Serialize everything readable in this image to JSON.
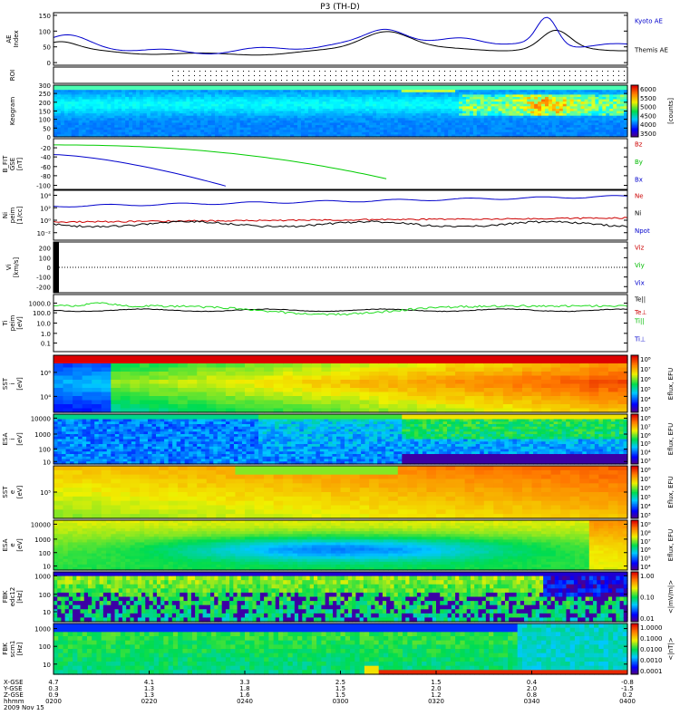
{
  "title": "P3 (TH-D)",
  "date_label": "2009 Nov 15",
  "chart_data": {
    "type": "multi-panel",
    "xaxis": {
      "row_labels": [
        "X-GSE",
        "Y-GSE",
        "Z-GSE",
        "hhmm"
      ],
      "times": [
        "0200",
        "0220",
        "0240",
        "0300",
        "0320",
        "0340",
        "0400"
      ],
      "x_gse": [
        "4.7",
        "4.1",
        "3.3",
        "2.5",
        "1.5",
        "0.4",
        "-0.8"
      ],
      "y_gse": [
        "0.3",
        "1.3",
        "1.8",
        "1.5",
        "2.0",
        "2.0",
        "-1.5"
      ],
      "z_gse": [
        "0.9",
        "1.3",
        "1.6",
        "1.5",
        "1.2",
        "0.8",
        "0.2"
      ]
    },
    "panels": [
      {
        "id": "ae",
        "ylabel": "AE Index",
        "ticks": [
          "150",
          "100",
          "50",
          "0"
        ],
        "series": [
          {
            "name": "Kyoto AE",
            "color": "#0000cc"
          },
          {
            "name": "Themis AE",
            "color": "#000000"
          }
        ]
      },
      {
        "id": "roi",
        "ylabel": "ROI"
      },
      {
        "id": "keogram",
        "ylabel": "Keogram",
        "ticks": [
          "300",
          "250",
          "200",
          "150",
          "100",
          "50",
          "0"
        ],
        "colorbar": {
          "ticks": [
            "6000",
            "5500",
            "5000",
            "4500",
            "4000",
            "3500"
          ],
          "label": "[counts]"
        }
      },
      {
        "id": "bfit",
        "ylabel": "B_FIT GSE [nT]",
        "ticks": [
          "-20",
          "-40",
          "-60",
          "-80",
          "-100"
        ],
        "series": [
          {
            "name": "Bz",
            "color": "#cc0000"
          },
          {
            "name": "By",
            "color": "#00bb00"
          },
          {
            "name": "Bx",
            "color": "#0000cc"
          }
        ]
      },
      {
        "id": "ni",
        "ylabel": "Ni peim [1/cc]",
        "ticks": [
          "10⁴",
          "10²",
          "10⁰",
          "10⁻²"
        ],
        "series": [
          {
            "name": "Ne",
            "color": "#cc0000"
          },
          {
            "name": "Ni",
            "color": "#000000"
          },
          {
            "name": "Npot",
            "color": "#0000cc"
          }
        ]
      },
      {
        "id": "vi",
        "ylabel": "Vi [km/s]",
        "ticks": [
          "200",
          "100",
          "0",
          "-100",
          "-200"
        ],
        "series": [
          {
            "name": "Viz",
            "color": "#cc0000"
          },
          {
            "name": "Viy",
            "color": "#00bb00"
          },
          {
            "name": "Vix",
            "color": "#0000cc"
          }
        ]
      },
      {
        "id": "ti",
        "ylabel": "Ti peim [eV]",
        "ticks": [
          "1000.0",
          "100.0",
          "10.0",
          "1.0",
          "0.1"
        ],
        "series": [
          {
            "name": "Te||",
            "color": "#000000"
          },
          {
            "name": "Te⊥",
            "color": "#cc0000"
          },
          {
            "name": "Ti||",
            "color": "#00bb00"
          },
          {
            "name": "Ti⊥",
            "color": "#0000cc"
          }
        ]
      },
      {
        "id": "sst_i",
        "ylabel": "SST i [eV]",
        "ticks": [
          "10⁶",
          "10⁴"
        ],
        "colorbar": {
          "ticks": [
            "10⁸",
            "10⁷",
            "10⁶",
            "10⁵",
            "10⁴",
            "10³"
          ],
          "label": "Eflux, EFU"
        }
      },
      {
        "id": "esa_i",
        "ylabel": "ESA i [eV]",
        "ticks": [
          "10000",
          "1000",
          "100",
          "10"
        ],
        "colorbar": {
          "ticks": [
            "10⁸",
            "10⁷",
            "10⁶",
            "10⁵",
            "10⁴",
            "10³"
          ],
          "label": "Eflux, EFU"
        }
      },
      {
        "id": "sst_e",
        "ylabel": "SST e [eV]",
        "ticks": [
          "10⁵"
        ],
        "colorbar": {
          "ticks": [
            "10⁸",
            "10⁷",
            "10⁶",
            "10⁵",
            "10⁴",
            "10³"
          ],
          "label": "Eflux, EFU"
        }
      },
      {
        "id": "esa_e",
        "ylabel": "ESA e [eV]",
        "ticks": [
          "10000",
          "1000",
          "100",
          "10"
        ],
        "colorbar": {
          "ticks": [
            "10⁹",
            "10⁸",
            "10⁷",
            "10⁶",
            "10⁵",
            "10⁴"
          ],
          "label": "Eflux, EFU"
        }
      },
      {
        "id": "fbk_e",
        "ylabel": "FBK edc12 [Hz]",
        "ticks": [
          "1000",
          "100",
          "10"
        ],
        "colorbar": {
          "ticks": [
            "1.00",
            "0.10",
            "0.01"
          ],
          "label": "<|mV/m|>"
        }
      },
      {
        "id": "fbk_b",
        "ylabel": "FBK scm1 [Hz]",
        "ticks": [
          "1000",
          "100",
          "10"
        ],
        "colorbar": {
          "ticks": [
            "1.0000",
            "0.1000",
            "0.0100",
            "0.0010",
            "0.0001"
          ],
          "label": "<|nT|>"
        }
      }
    ]
  }
}
